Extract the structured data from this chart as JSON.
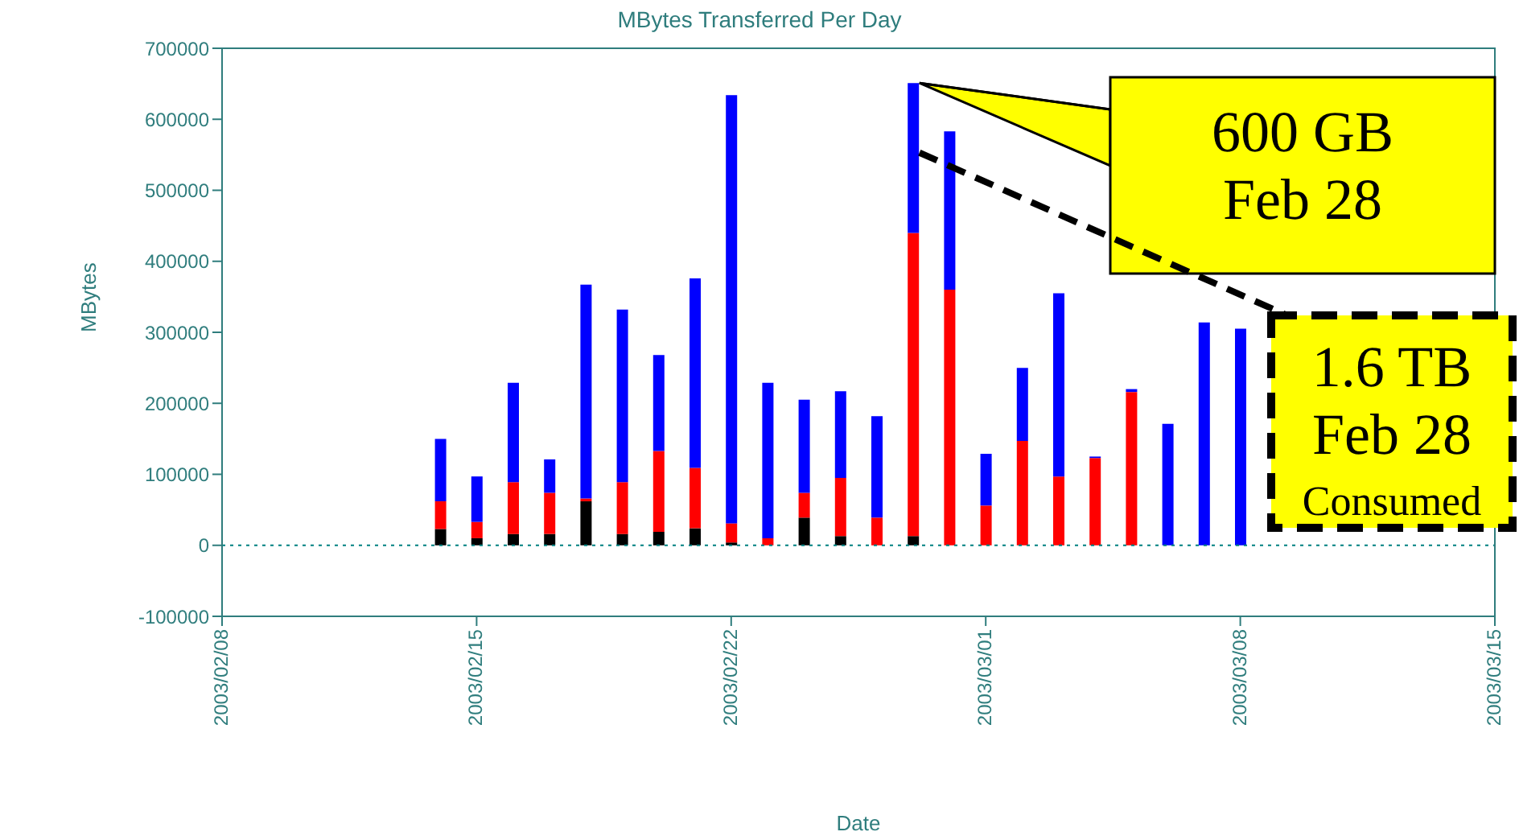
{
  "chart_data": {
    "type": "bar",
    "title": "MBytes Transferred Per Day",
    "xlabel": "Date",
    "ylabel": "MBytes",
    "stacked": true,
    "x": [
      "2003-02-14",
      "2003-02-15",
      "2003-02-16",
      "2003-02-17",
      "2003-02-18",
      "2003-02-19",
      "2003-02-20",
      "2003-02-21",
      "2003-02-22",
      "2003-02-23",
      "2003-02-24",
      "2003-02-25",
      "2003-02-26",
      "2003-02-27",
      "2003-02-28",
      "2003-03-01",
      "2003-03-02",
      "2003-03-03",
      "2003-03-04",
      "2003-03-05",
      "2003-03-06",
      "2003-03-07",
      "2003-03-08"
    ],
    "series": [
      {
        "color": "#000000",
        "values": [
          23000,
          10000,
          16000,
          16000,
          62000,
          16000,
          19000,
          24000,
          4000,
          0,
          39000,
          13000,
          0,
          13000,
          0,
          0,
          0,
          0,
          0,
          0,
          null,
          null,
          null
        ]
      },
      {
        "color": "#ff0000",
        "values": [
          39000,
          23000,
          73000,
          58000,
          4000,
          73000,
          114000,
          85000,
          27000,
          10000,
          35000,
          82000,
          39000,
          427000,
          360000,
          56000,
          147000,
          97000,
          123000,
          216000,
          null,
          null,
          null
        ]
      },
      {
        "color": "#0000ff",
        "values": [
          88000,
          64000,
          140000,
          47000,
          301000,
          243000,
          135000,
          267000,
          603000,
          219000,
          131000,
          122000,
          143000,
          211000,
          223000,
          73000,
          103000,
          258000,
          2000,
          4000,
          171000,
          314000,
          305000
        ]
      }
    ],
    "xlim": [
      "2003-02-08",
      "2003-03-15"
    ],
    "xticks": [
      {
        "value": "2003-02-08",
        "label": "2003/02/08"
      },
      {
        "value": "2003-02-15",
        "label": "2003/02/15"
      },
      {
        "value": "2003-02-22",
        "label": "2003/02/22"
      },
      {
        "value": "2003-03-01",
        "label": "2003/03/01"
      },
      {
        "value": "2003-03-08",
        "label": "2003/03/08"
      },
      {
        "value": "2003-03-15",
        "label": "2003/03/15"
      }
    ],
    "ylim": [
      -100000,
      700000
    ],
    "yticks": [
      -100000,
      0,
      100000,
      200000,
      300000,
      400000,
      500000,
      600000,
      700000
    ],
    "ref_lines": [
      {
        "axis": "y",
        "value": 0,
        "color": "#008080",
        "line_style": "dotted"
      }
    ],
    "annotations": [
      "600 GB\nFeb 28",
      {
        "text": "1.6 TB\nFeb 28\nConsumed",
        "x": "2003-02-27",
        "y": 553000
      }
    ]
  }
}
